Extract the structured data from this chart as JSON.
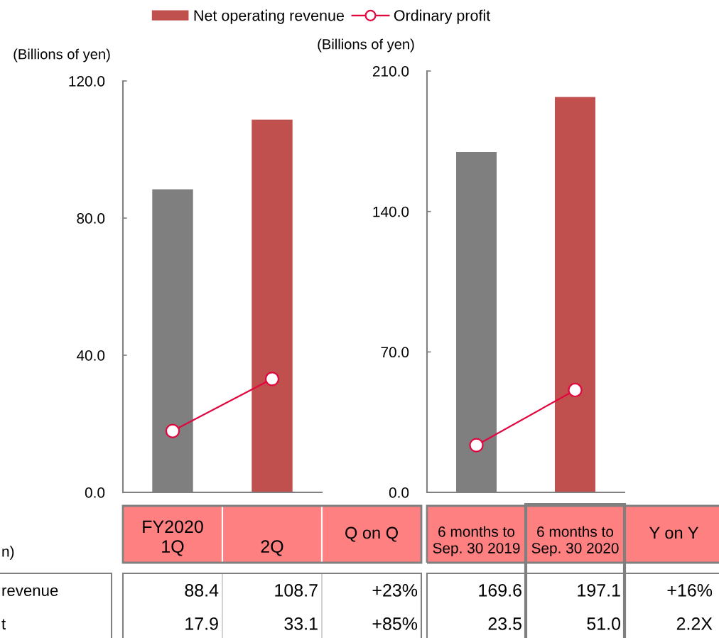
{
  "chart_data": [
    {
      "type": "bar",
      "ylabel": "(Billions of yen)",
      "categories": [
        "FY2020\n1Q",
        "2Q"
      ],
      "series": [
        {
          "name": "Net operating revenue",
          "color": "#c0504d",
          "colors": [
            "#7f7f7f",
            "#c0504d"
          ],
          "values": [
            88.4,
            108.7
          ]
        },
        {
          "name": "Ordinary profit",
          "type": "line",
          "color": "#e2063f",
          "values": [
            17.9,
            33.1
          ]
        }
      ],
      "marker": "circle",
      "ylim": [
        0,
        120
      ],
      "yticks": [
        {
          "value": 0,
          "label": "0.0"
        },
        {
          "value": 40,
          "label": "40.0"
        },
        {
          "value": 80,
          "label": "80.0"
        },
        {
          "value": 120,
          "label": "120.0"
        }
      ],
      "data_labels": true,
      "legend": "top",
      "annotations": [
        "Q on Q",
        "+23%",
        "+85%",
        "n)",
        "revenue",
        "t"
      ]
    },
    {
      "type": "bar",
      "ylabel": "(Billions of yen)",
      "categories": [
        "6 months to\nSep. 30 2019",
        "6 months to\nSep. 30 2020"
      ],
      "series": [
        {
          "name": "Net operating revenue",
          "colors": [
            "#7f7f7f",
            "#c0504d"
          ],
          "values": [
            169.6,
            197.1
          ]
        },
        {
          "name": "Ordinary profit",
          "type": "line",
          "color": "#e2063f",
          "values": [
            23.5,
            51.0
          ],
          "value_labels": [
            "23.5",
            "51.0"
          ]
        }
      ],
      "marker": "circle",
      "ylim": [
        0,
        210
      ],
      "yticks": [
        {
          "value": 0,
          "label": "0.0"
        },
        {
          "value": 70,
          "label": "70.0"
        },
        {
          "value": 140,
          "label": "140.0"
        },
        {
          "value": 210,
          "label": "210.0"
        }
      ],
      "data_labels": true,
      "annotations": [
        "Y on Y",
        "+16%",
        "2.2X"
      ]
    }
  ]
}
